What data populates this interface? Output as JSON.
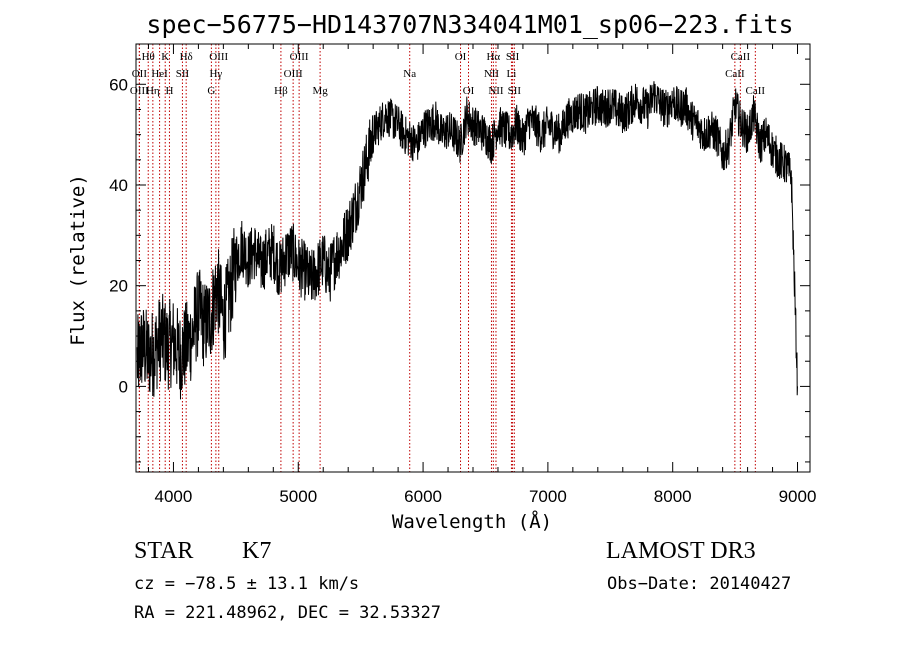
{
  "chart_data": {
    "type": "line",
    "title": "spec−56775−HD143707N334041M01_sp06−223.fits",
    "xlabel": "Wavelength (Å)",
    "ylabel": "Flux (relative)",
    "xlim": [
      3700,
      9100
    ],
    "ylim": [
      -17,
      68
    ],
    "x_ticks": [
      4000,
      5000,
      6000,
      7000,
      8000,
      9000
    ],
    "y_ticks": [
      0,
      20,
      40,
      60
    ],
    "x_tick_labels": [
      "4000",
      "5000",
      "6000",
      "7000",
      "8000",
      "9000"
    ],
    "y_tick_labels": [
      "0",
      "20",
      "40",
      "60"
    ],
    "grid": false,
    "series": [
      {
        "name": "spectrum",
        "x": [
          3710,
          3750,
          3800,
          3850,
          3900,
          3950,
          4000,
          4050,
          4100,
          4150,
          4200,
          4250,
          4300,
          4350,
          4400,
          4450,
          4500,
          4550,
          4600,
          4650,
          4700,
          4750,
          4800,
          4850,
          4900,
          4950,
          5000,
          5050,
          5100,
          5150,
          5200,
          5250,
          5300,
          5350,
          5400,
          5450,
          5500,
          5550,
          5600,
          5650,
          5700,
          5750,
          5800,
          5850,
          5900,
          5950,
          6000,
          6050,
          6100,
          6150,
          6200,
          6250,
          6300,
          6350,
          6400,
          6450,
          6500,
          6550,
          6600,
          6650,
          6700,
          6750,
          6800,
          6850,
          6900,
          6950,
          7000,
          7050,
          7100,
          7150,
          7200,
          7250,
          7300,
          7350,
          7400,
          7450,
          7500,
          7550,
          7600,
          7650,
          7700,
          7750,
          7800,
          7850,
          7900,
          7950,
          8000,
          8050,
          8100,
          8150,
          8200,
          8250,
          8300,
          8350,
          8400,
          8450,
          8500,
          8550,
          8600,
          8650,
          8700,
          8750,
          8800,
          8850,
          8900,
          8950,
          9000
        ],
        "y": [
          5,
          8,
          6,
          7,
          10,
          8,
          9,
          6,
          8,
          10,
          15,
          12,
          14,
          20,
          13,
          18,
          25,
          28,
          25,
          27,
          24,
          26,
          27,
          23,
          26,
          27,
          24,
          23,
          21,
          23,
          25,
          22,
          26,
          28,
          31,
          35,
          40,
          45,
          50,
          52,
          54,
          53,
          52,
          50,
          49,
          48,
          51,
          52,
          53,
          50,
          51,
          50,
          48,
          54,
          52,
          51,
          50,
          48,
          52,
          51,
          50,
          52,
          49,
          53,
          52,
          50,
          52,
          51,
          50,
          53,
          54,
          55,
          54,
          55,
          56,
          55,
          56,
          55,
          54,
          55,
          57,
          56,
          55,
          58,
          56,
          55,
          57,
          55,
          56,
          53,
          52,
          50,
          51,
          50,
          46,
          48,
          56,
          52,
          50,
          54,
          48,
          50,
          47,
          45,
          44,
          42,
          0
        ]
      }
    ],
    "line_labels": [
      {
        "label": "Hθ",
        "wavelength": 3798,
        "row": 1
      },
      {
        "label": "OII",
        "wavelength": 3727,
        "row": 2
      },
      {
        "label": "OIII",
        "wavelength": 3727,
        "row": 3
      },
      {
        "label": "K",
        "wavelength": 3934,
        "row": 1
      },
      {
        "label": "HeI",
        "wavelength": 3889,
        "row": 2
      },
      {
        "label": "Hη",
        "wavelength": 3835,
        "row": 3
      },
      {
        "label": "H",
        "wavelength": 3968,
        "row": 3
      },
      {
        "label": "Hδ",
        "wavelength": 4102,
        "row": 1
      },
      {
        "label": "SII",
        "wavelength": 4072,
        "row": 2
      },
      {
        "label": "OIII",
        "wavelength": 4363,
        "row": 1
      },
      {
        "label": "Hγ",
        "wavelength": 4340,
        "row": 2
      },
      {
        "label": "G",
        "wavelength": 4304,
        "row": 3
      },
      {
        "label": "OIII",
        "wavelength": 5007,
        "row": 1
      },
      {
        "label": "OIII",
        "wavelength": 4959,
        "row": 2
      },
      {
        "label": "Hβ",
        "wavelength": 4861,
        "row": 3
      },
      {
        "label": "Mg",
        "wavelength": 5175,
        "row": 3
      },
      {
        "label": "Na",
        "wavelength": 5893,
        "row": 2
      },
      {
        "label": "OI",
        "wavelength": 6300,
        "row": 1
      },
      {
        "label": "OI",
        "wavelength": 6364,
        "row": 3
      },
      {
        "label": "Hα",
        "wavelength": 6563,
        "row": 1
      },
      {
        "label": "SII",
        "wavelength": 6717,
        "row": 1
      },
      {
        "label": "NII",
        "wavelength": 6548,
        "row": 2
      },
      {
        "label": "Li",
        "wavelength": 6708,
        "row": 2
      },
      {
        "label": "NII",
        "wavelength": 6584,
        "row": 3
      },
      {
        "label": "SII",
        "wavelength": 6731,
        "row": 3
      },
      {
        "label": "CaII",
        "wavelength": 8542,
        "row": 1
      },
      {
        "label": "CaII",
        "wavelength": 8498,
        "row": 2
      },
      {
        "label": "CaII",
        "wavelength": 8662,
        "row": 3
      }
    ]
  },
  "info": {
    "obj_class": "STAR",
    "subclass": "K7",
    "survey": "LAMOST DR3",
    "cz": "cz = −78.5 ± 13.1 km/s",
    "obs_date": "Obs−Date: 20140427",
    "radec": "RA = 221.48962, DEC =  32.53327"
  }
}
